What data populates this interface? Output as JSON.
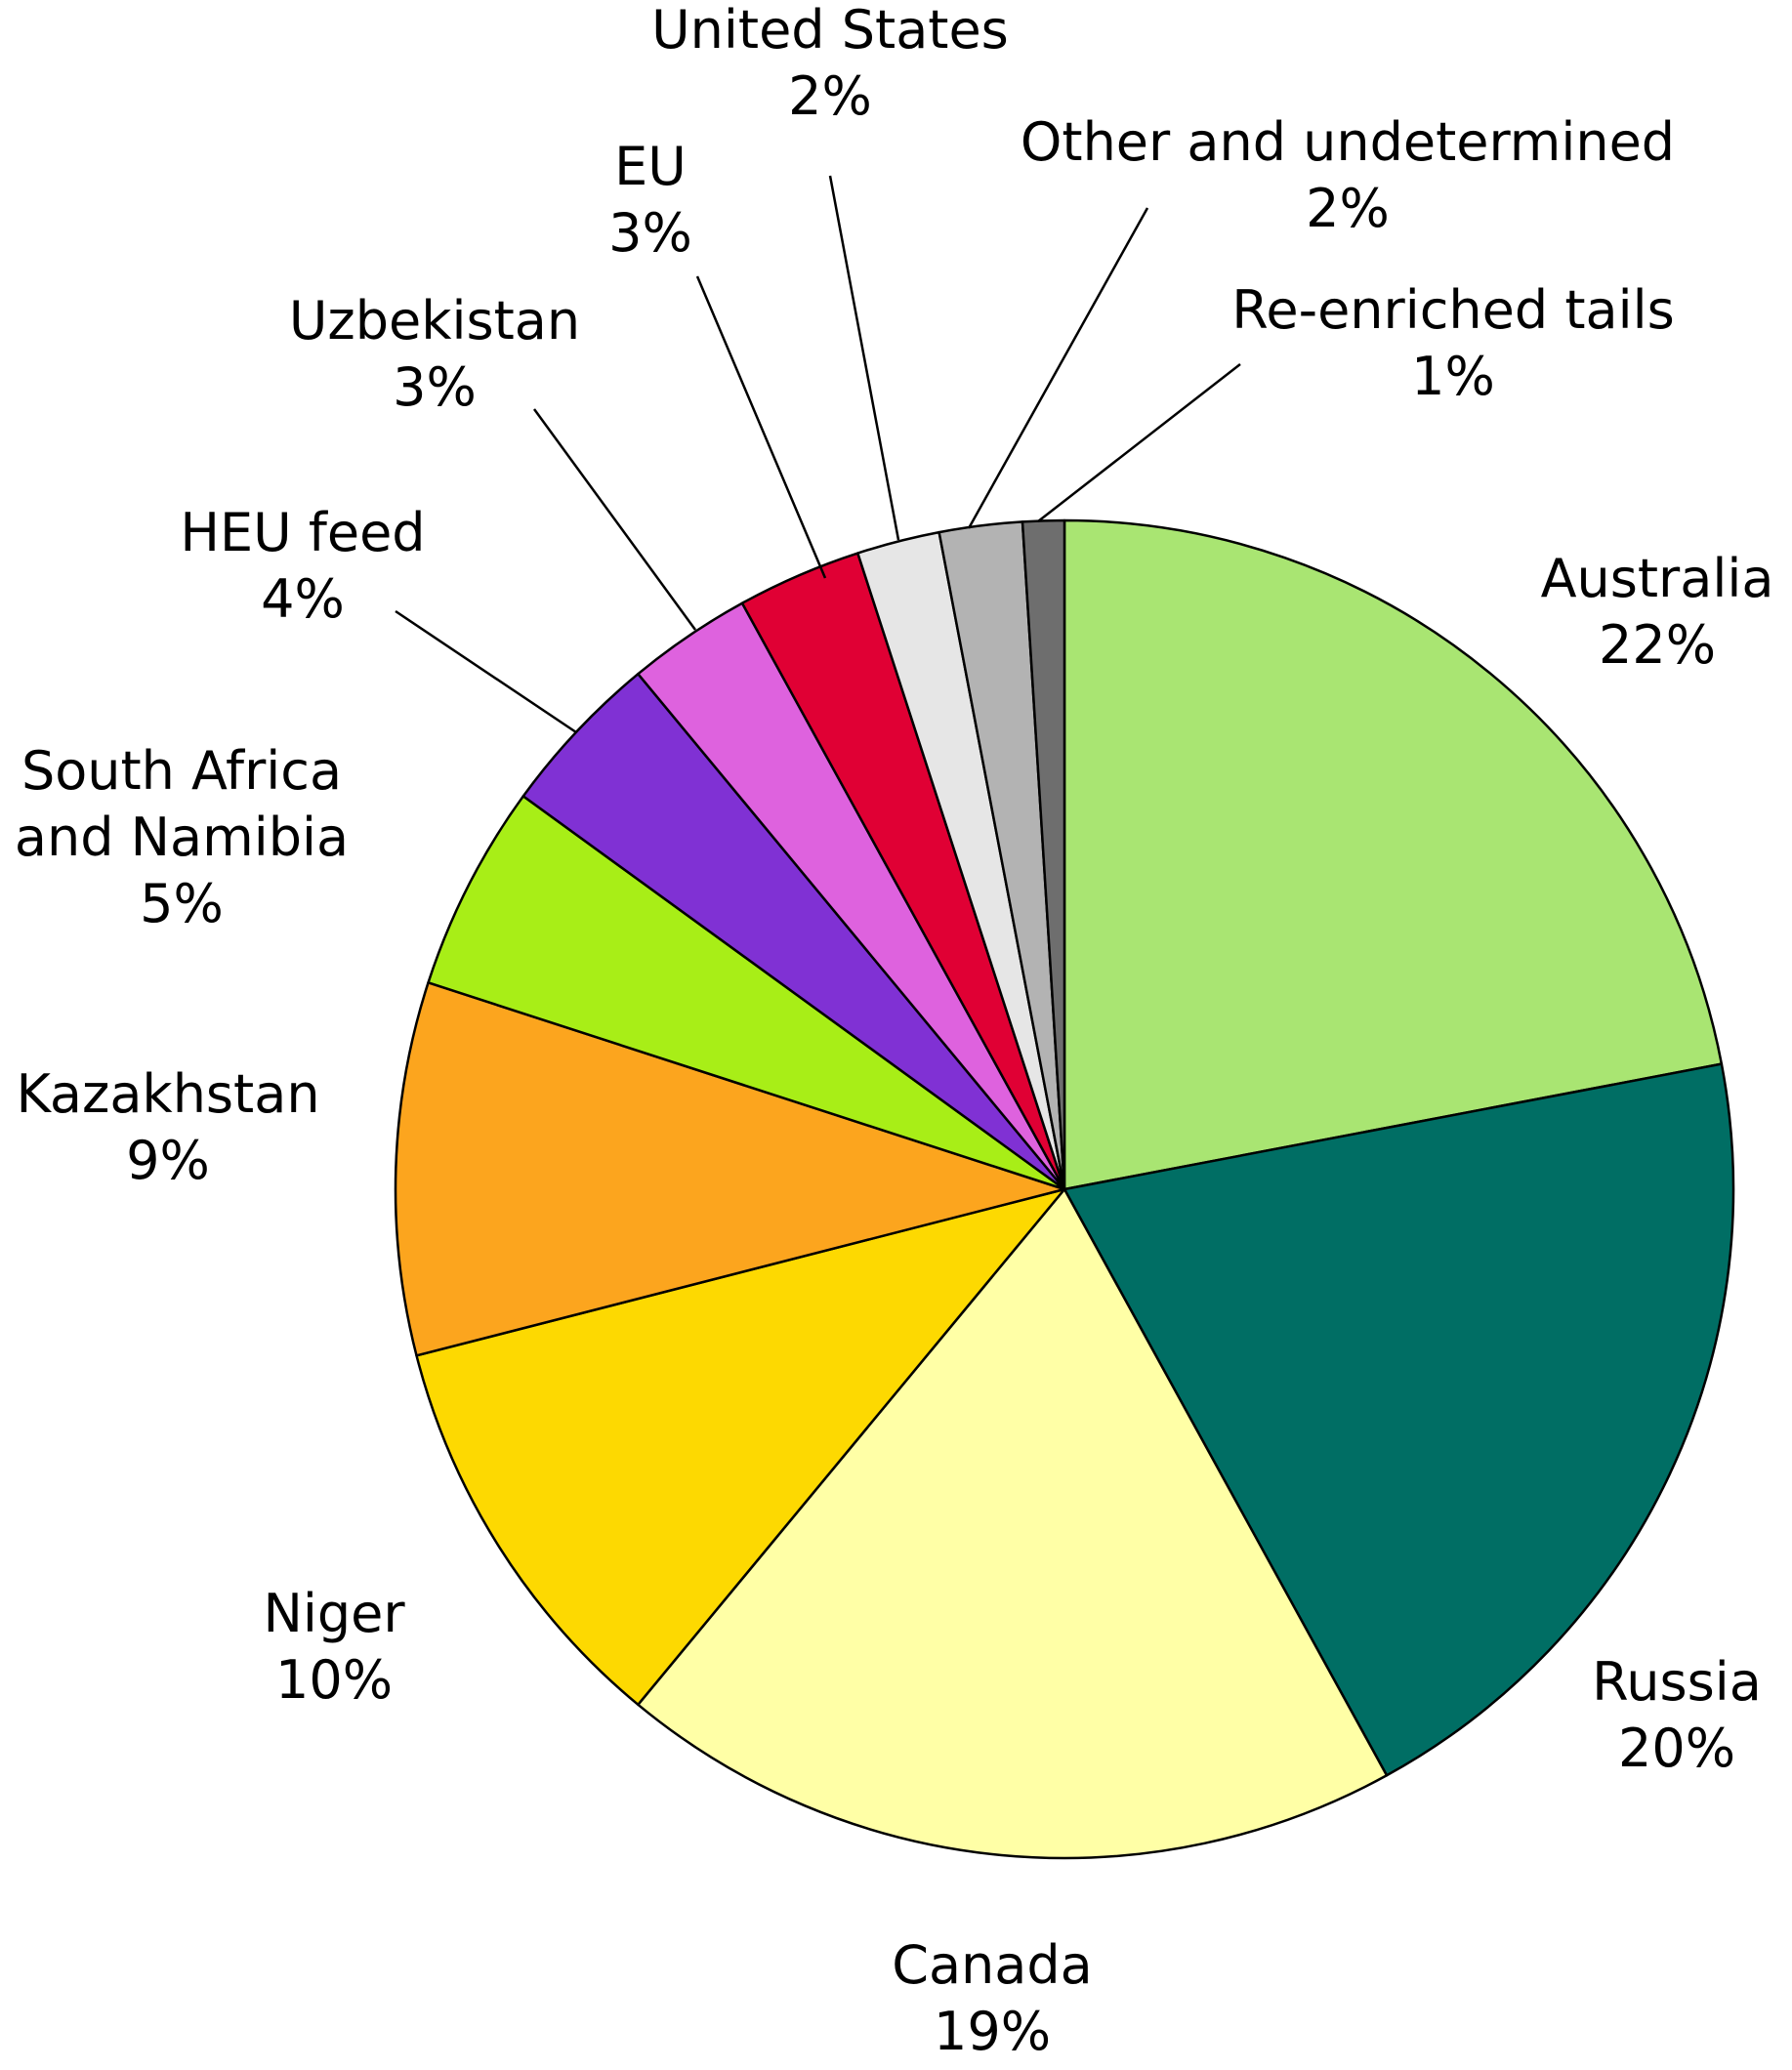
{
  "chart_data": {
    "type": "pie",
    "title": "",
    "start": "12 o'clock",
    "direction": "clockwise",
    "slices": [
      {
        "label_lines": [
          "Australia"
        ],
        "pct_label": "22%",
        "value": 22,
        "color": "#A9E572"
      },
      {
        "label_lines": [
          "Russia"
        ],
        "pct_label": "20%",
        "value": 20,
        "color": "#006E64"
      },
      {
        "label_lines": [
          "Canada"
        ],
        "pct_label": "19%",
        "value": 19,
        "color": "#FFFFA6"
      },
      {
        "label_lines": [
          "Niger"
        ],
        "pct_label": "10%",
        "value": 10,
        "color": "#FDD901"
      },
      {
        "label_lines": [
          "Kazakhstan"
        ],
        "pct_label": "9%",
        "value": 9,
        "color": "#FCA51E"
      },
      {
        "label_lines": [
          "South Africa",
          "and Namibia"
        ],
        "pct_label": "5%",
        "value": 5,
        "color": "#A8EE17"
      },
      {
        "label_lines": [
          "HEU feed"
        ],
        "pct_label": "4%",
        "value": 4,
        "color": "#8031D4"
      },
      {
        "label_lines": [
          "Uzbekistan"
        ],
        "pct_label": "3%",
        "value": 3,
        "color": "#DE62DE"
      },
      {
        "label_lines": [
          "EU"
        ],
        "pct_label": "3%",
        "value": 3,
        "color": "#E00034"
      },
      {
        "label_lines": [
          "United States"
        ],
        "pct_label": "2%",
        "value": 2,
        "color": "#E6E6E6"
      },
      {
        "label_lines": [
          "Other and undetermined"
        ],
        "pct_label": "2%",
        "value": 2,
        "color": "#B3B3B3"
      },
      {
        "label_lines": [
          "Re-enriched tails"
        ],
        "pct_label": "1%",
        "value": 1,
        "color": "#6E6E6E"
      }
    ]
  }
}
